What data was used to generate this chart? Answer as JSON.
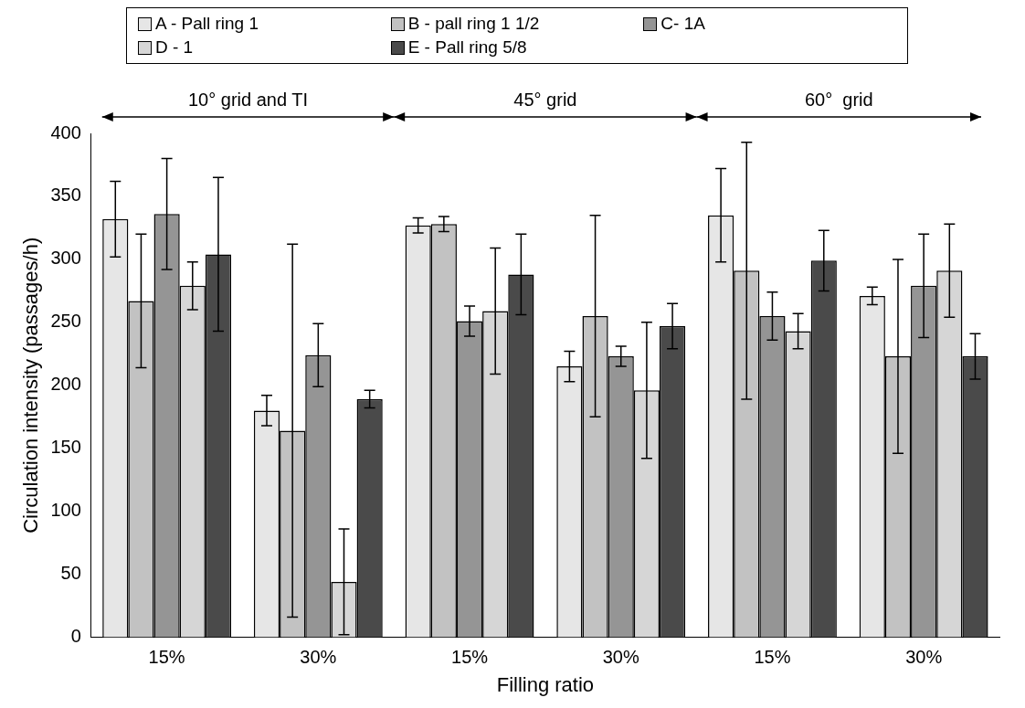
{
  "chart_data": {
    "type": "bar",
    "xlabel": "Filling ratio",
    "ylabel": "Circulation intensity (passages/h)",
    "categories": [
      "15%",
      "30%",
      "15%",
      "30%",
      "15%",
      "30%"
    ],
    "series": [
      {
        "name": "A - Pall ring 1",
        "color": "#e6e6e6",
        "values": [
          332,
          180,
          327,
          215,
          335,
          271
        ],
        "errors": [
          30,
          12,
          6,
          12,
          37,
          7
        ]
      },
      {
        "name": "B - pall ring 1 1/2",
        "color": "#c2c2c2",
        "values": [
          267,
          164,
          328,
          255,
          291,
          223
        ],
        "errors": [
          53,
          148,
          6,
          80,
          102,
          77
        ]
      },
      {
        "name": "C- 1A",
        "color": "#959595",
        "values": [
          336,
          224,
          251,
          223,
          255,
          279
        ],
        "errors": [
          44,
          25,
          12,
          8,
          19,
          41
        ]
      },
      {
        "name": "D - 1",
        "color": "#d6d6d6",
        "values": [
          279,
          44,
          259,
          196,
          243,
          291
        ],
        "errors": [
          19,
          42,
          50,
          54,
          14,
          37
        ]
      },
      {
        "name": "E - Pall ring 5/8",
        "color": "#4a4a4a",
        "values": [
          304,
          189,
          288,
          247,
          299,
          223
        ],
        "errors": [
          61,
          7,
          32,
          18,
          24,
          18
        ]
      }
    ],
    "ylim": [
      0,
      400
    ],
    "yticks": [
      0,
      50,
      100,
      150,
      200,
      250,
      300,
      350,
      400
    ],
    "grid": false,
    "legend": "top",
    "annotations": [
      "10° grid and TI",
      "45° grid",
      "60°  grid"
    ]
  }
}
